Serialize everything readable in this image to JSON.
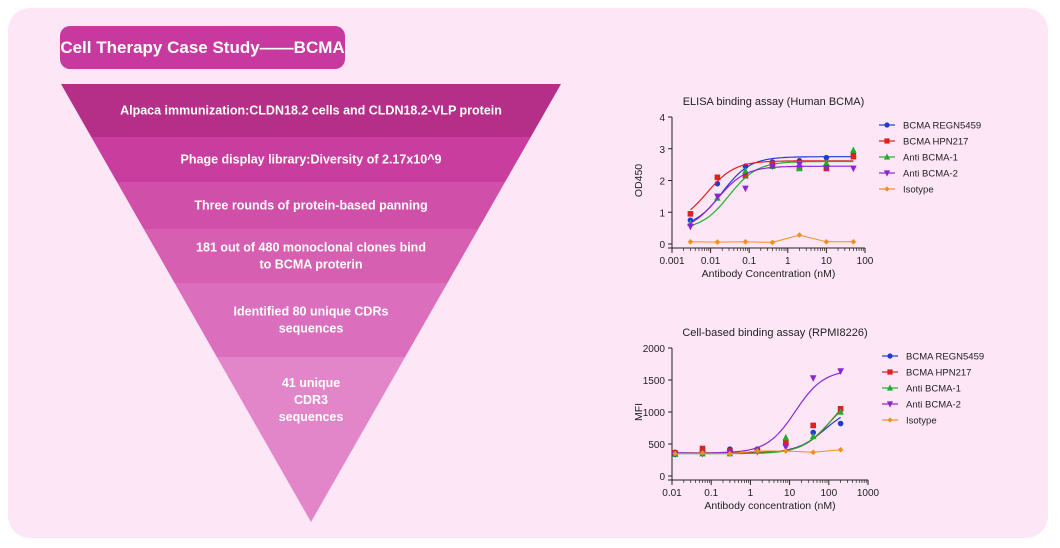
{
  "header": {
    "title": "Cell Therapy Case Study——BCMA"
  },
  "funnel": {
    "steps": [
      {
        "lines": [
          "Alpaca immunization:CLDN18.2 cells and CLDN18.2-VLP protein"
        ],
        "color": "#b52f89"
      },
      {
        "lines": [
          "Phage display library:Diversity of 2.17x10^9"
        ],
        "color": "#c93d9e"
      },
      {
        "lines": [
          "Three rounds of protein-based panning"
        ],
        "color": "#d04fa8"
      },
      {
        "lines": [
          "181 out of 480 monoclonal clones bind",
          "to BCMA proterin"
        ],
        "color": "#d65fb2"
      },
      {
        "lines": [
          "Identified 80 unique CDRs",
          "sequences"
        ],
        "color": "#dc6fbd"
      },
      {
        "lines": [
          "41 unique",
          "CDR3",
          "sequences"
        ],
        "color": "#e386c9"
      }
    ]
  },
  "chart_data": [
    {
      "type": "scatter",
      "title": "ELISA binding assay (Human BCMA)",
      "xlabel": "Antibody Concentration (nM)",
      "ylabel": "OD450",
      "xscale": "log",
      "xlim": [
        0.001,
        100
      ],
      "ylim": [
        0,
        4
      ],
      "xticks": [
        0.001,
        0.01,
        0.1,
        1,
        10,
        100
      ],
      "xtick_labels": [
        "0.001",
        "0.01",
        "0.1",
        "1",
        "10",
        "100"
      ],
      "yticks": [
        0,
        1,
        2,
        3,
        4
      ],
      "ytick_labels": [
        "0",
        "1",
        "2",
        "3",
        "4"
      ],
      "legend_position": "top-right",
      "x": [
        0.003,
        0.015,
        0.08,
        0.4,
        2,
        10,
        50
      ],
      "series": [
        {
          "name": "BCMA REGN5459",
          "color": "#1f3bd6",
          "marker": "circle",
          "values": [
            0.75,
            1.9,
            2.45,
            2.58,
            2.62,
            2.72,
            2.88
          ],
          "fit": [
            0.5,
            2.75,
            0.02
          ]
        },
        {
          "name": "BCMA HPN217",
          "color": "#e02020",
          "marker": "square",
          "values": [
            0.95,
            2.1,
            2.15,
            2.5,
            2.4,
            2.38,
            2.75
          ],
          "fit": [
            0.6,
            2.62,
            0.008
          ]
        },
        {
          "name": "Anti BCMA-1",
          "color": "#1fae2e",
          "marker": "triangle-up",
          "values": [
            0.65,
            1.45,
            2.3,
            2.45,
            2.38,
            2.55,
            2.95
          ],
          "fit": [
            0.45,
            2.6,
            0.03
          ]
        },
        {
          "name": "Anti BCMA-2",
          "color": "#8b24d8",
          "marker": "triangle-down",
          "values": [
            0.55,
            1.5,
            1.75,
            2.45,
            2.5,
            2.4,
            2.38
          ],
          "fit": [
            0.4,
            2.45,
            0.015
          ]
        },
        {
          "name": "Isotype",
          "color": "#f0901a",
          "marker": "diamond",
          "values": [
            0.07,
            0.06,
            0.07,
            0.05,
            0.28,
            0.07,
            0.07
          ],
          "fit": null
        }
      ]
    },
    {
      "type": "scatter",
      "title": "Cell-based binding assay (RPMI8226)",
      "xlabel": "Antibody concentration (nM)",
      "ylabel": "MFI",
      "xscale": "log",
      "xlim": [
        0.01,
        1000
      ],
      "ylim": [
        0,
        2000
      ],
      "xticks": [
        0.01,
        0.1,
        1,
        10,
        100,
        1000
      ],
      "xtick_labels": [
        "0.01",
        "0.1",
        "1",
        "10",
        "100",
        "1000"
      ],
      "yticks": [
        0,
        500,
        1000,
        1500,
        2000
      ],
      "ytick_labels": [
        "0",
        "500",
        "1000",
        "1500",
        "2000"
      ],
      "legend_position": "top-right",
      "x": [
        0.012,
        0.06,
        0.3,
        1.5,
        8,
        40,
        200
      ],
      "series": [
        {
          "name": "BCMA REGN5459",
          "color": "#1f3bd6",
          "marker": "circle",
          "values": [
            370,
            380,
            420,
            420,
            520,
            680,
            820
          ],
          "fit": [
            360,
            1100,
            80
          ]
        },
        {
          "name": "BCMA HPN217",
          "color": "#e02020",
          "marker": "square",
          "values": [
            360,
            430,
            390,
            400,
            520,
            790,
            1050
          ],
          "fit": [
            360,
            1400,
            120
          ]
        },
        {
          "name": "Anti BCMA-1",
          "color": "#1fae2e",
          "marker": "triangle-up",
          "values": [
            340,
            350,
            350,
            400,
            600,
            620,
            1000
          ],
          "fit": [
            350,
            1300,
            100
          ]
        },
        {
          "name": "Anti BCMA-2",
          "color": "#8b24d8",
          "marker": "triangle-down",
          "values": [
            340,
            350,
            360,
            380,
            450,
            1530,
            1640
          ],
          "fit": [
            360,
            1660,
            14
          ]
        },
        {
          "name": "Isotype",
          "color": "#f0901a",
          "marker": "diamond",
          "values": [
            350,
            360,
            350,
            390,
            390,
            370,
            410
          ],
          "fit": null
        }
      ]
    }
  ]
}
